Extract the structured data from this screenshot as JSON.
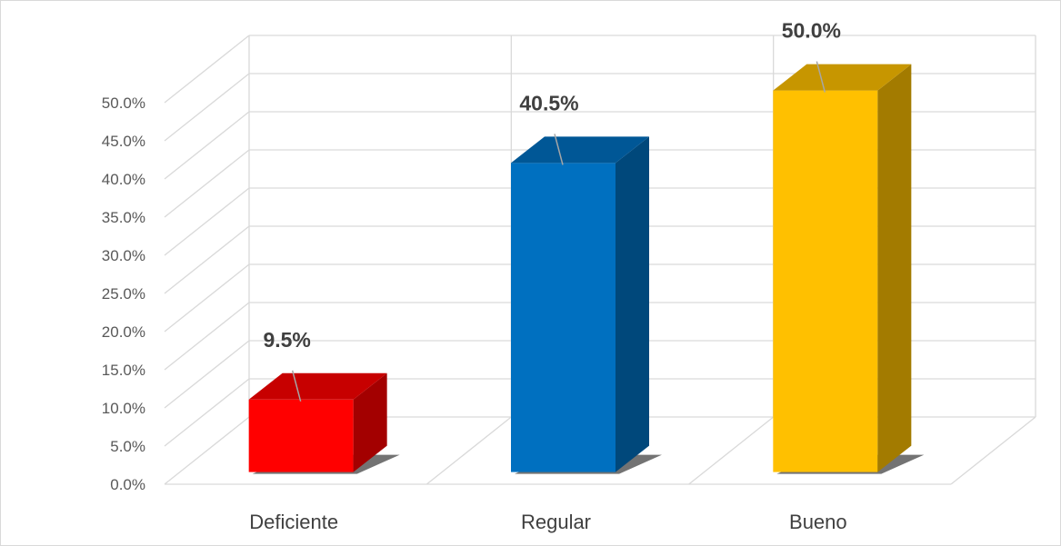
{
  "chart_data": {
    "type": "bar",
    "style": "3d-column",
    "categories": [
      "Deficiente",
      "Regular",
      "Bueno"
    ],
    "values": [
      9.5,
      40.5,
      50.0
    ],
    "data_labels": [
      "9.5%",
      "40.5%",
      "50.0%"
    ],
    "ylim": [
      0,
      50
    ],
    "ytick_labels": [
      "0.0%",
      "5.0%",
      "10.0%",
      "15.0%",
      "20.0%",
      "25.0%",
      "30.0%",
      "35.0%",
      "40.0%",
      "45.0%",
      "50.0%"
    ],
    "grid": true,
    "legend": "none",
    "colors": {
      "Deficiente": "#ff0000",
      "Regular": "#0070c0",
      "Bueno": "#ffc000"
    }
  }
}
